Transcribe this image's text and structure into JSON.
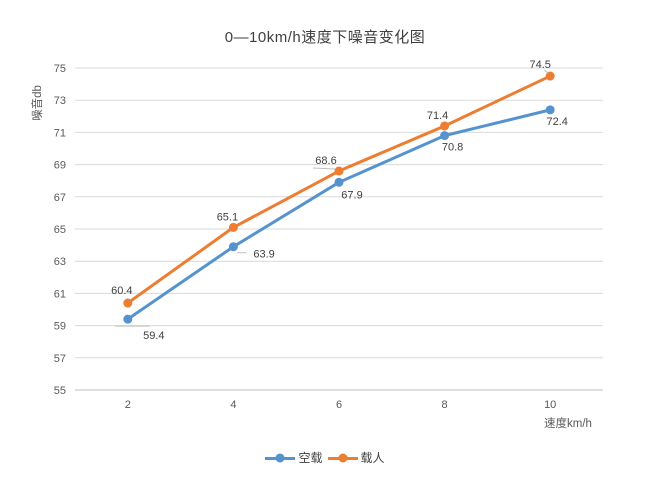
{
  "chart_data": {
    "type": "line",
    "title": "0—10km/h速度下噪音变化图",
    "xlabel": "速度km/h",
    "ylabel": "噪音db",
    "x": [
      2,
      4,
      6,
      8,
      10
    ],
    "series": [
      {
        "name": "空载",
        "color": "#5593CE",
        "values": [
          59.4,
          63.9,
          67.9,
          70.8,
          72.4
        ],
        "label_side": "below"
      },
      {
        "name": "载人",
        "color": "#ED7D31",
        "values": [
          60.4,
          65.1,
          68.6,
          71.4,
          74.5
        ],
        "label_side": "above"
      }
    ],
    "ylim": [
      55,
      75
    ],
    "ytick_step": 2,
    "yticks": [
      55,
      57,
      59,
      61,
      63,
      65,
      67,
      69,
      71,
      73,
      75
    ],
    "grid": "horizontal",
    "legend_position": "bottom",
    "colors": {
      "gridline": "#D9D9D9",
      "axis_line": "#BFBFBF",
      "tick_text": "#595959",
      "label_text": "#3F3F3F",
      "leader_line": "#BFBFBF"
    }
  }
}
